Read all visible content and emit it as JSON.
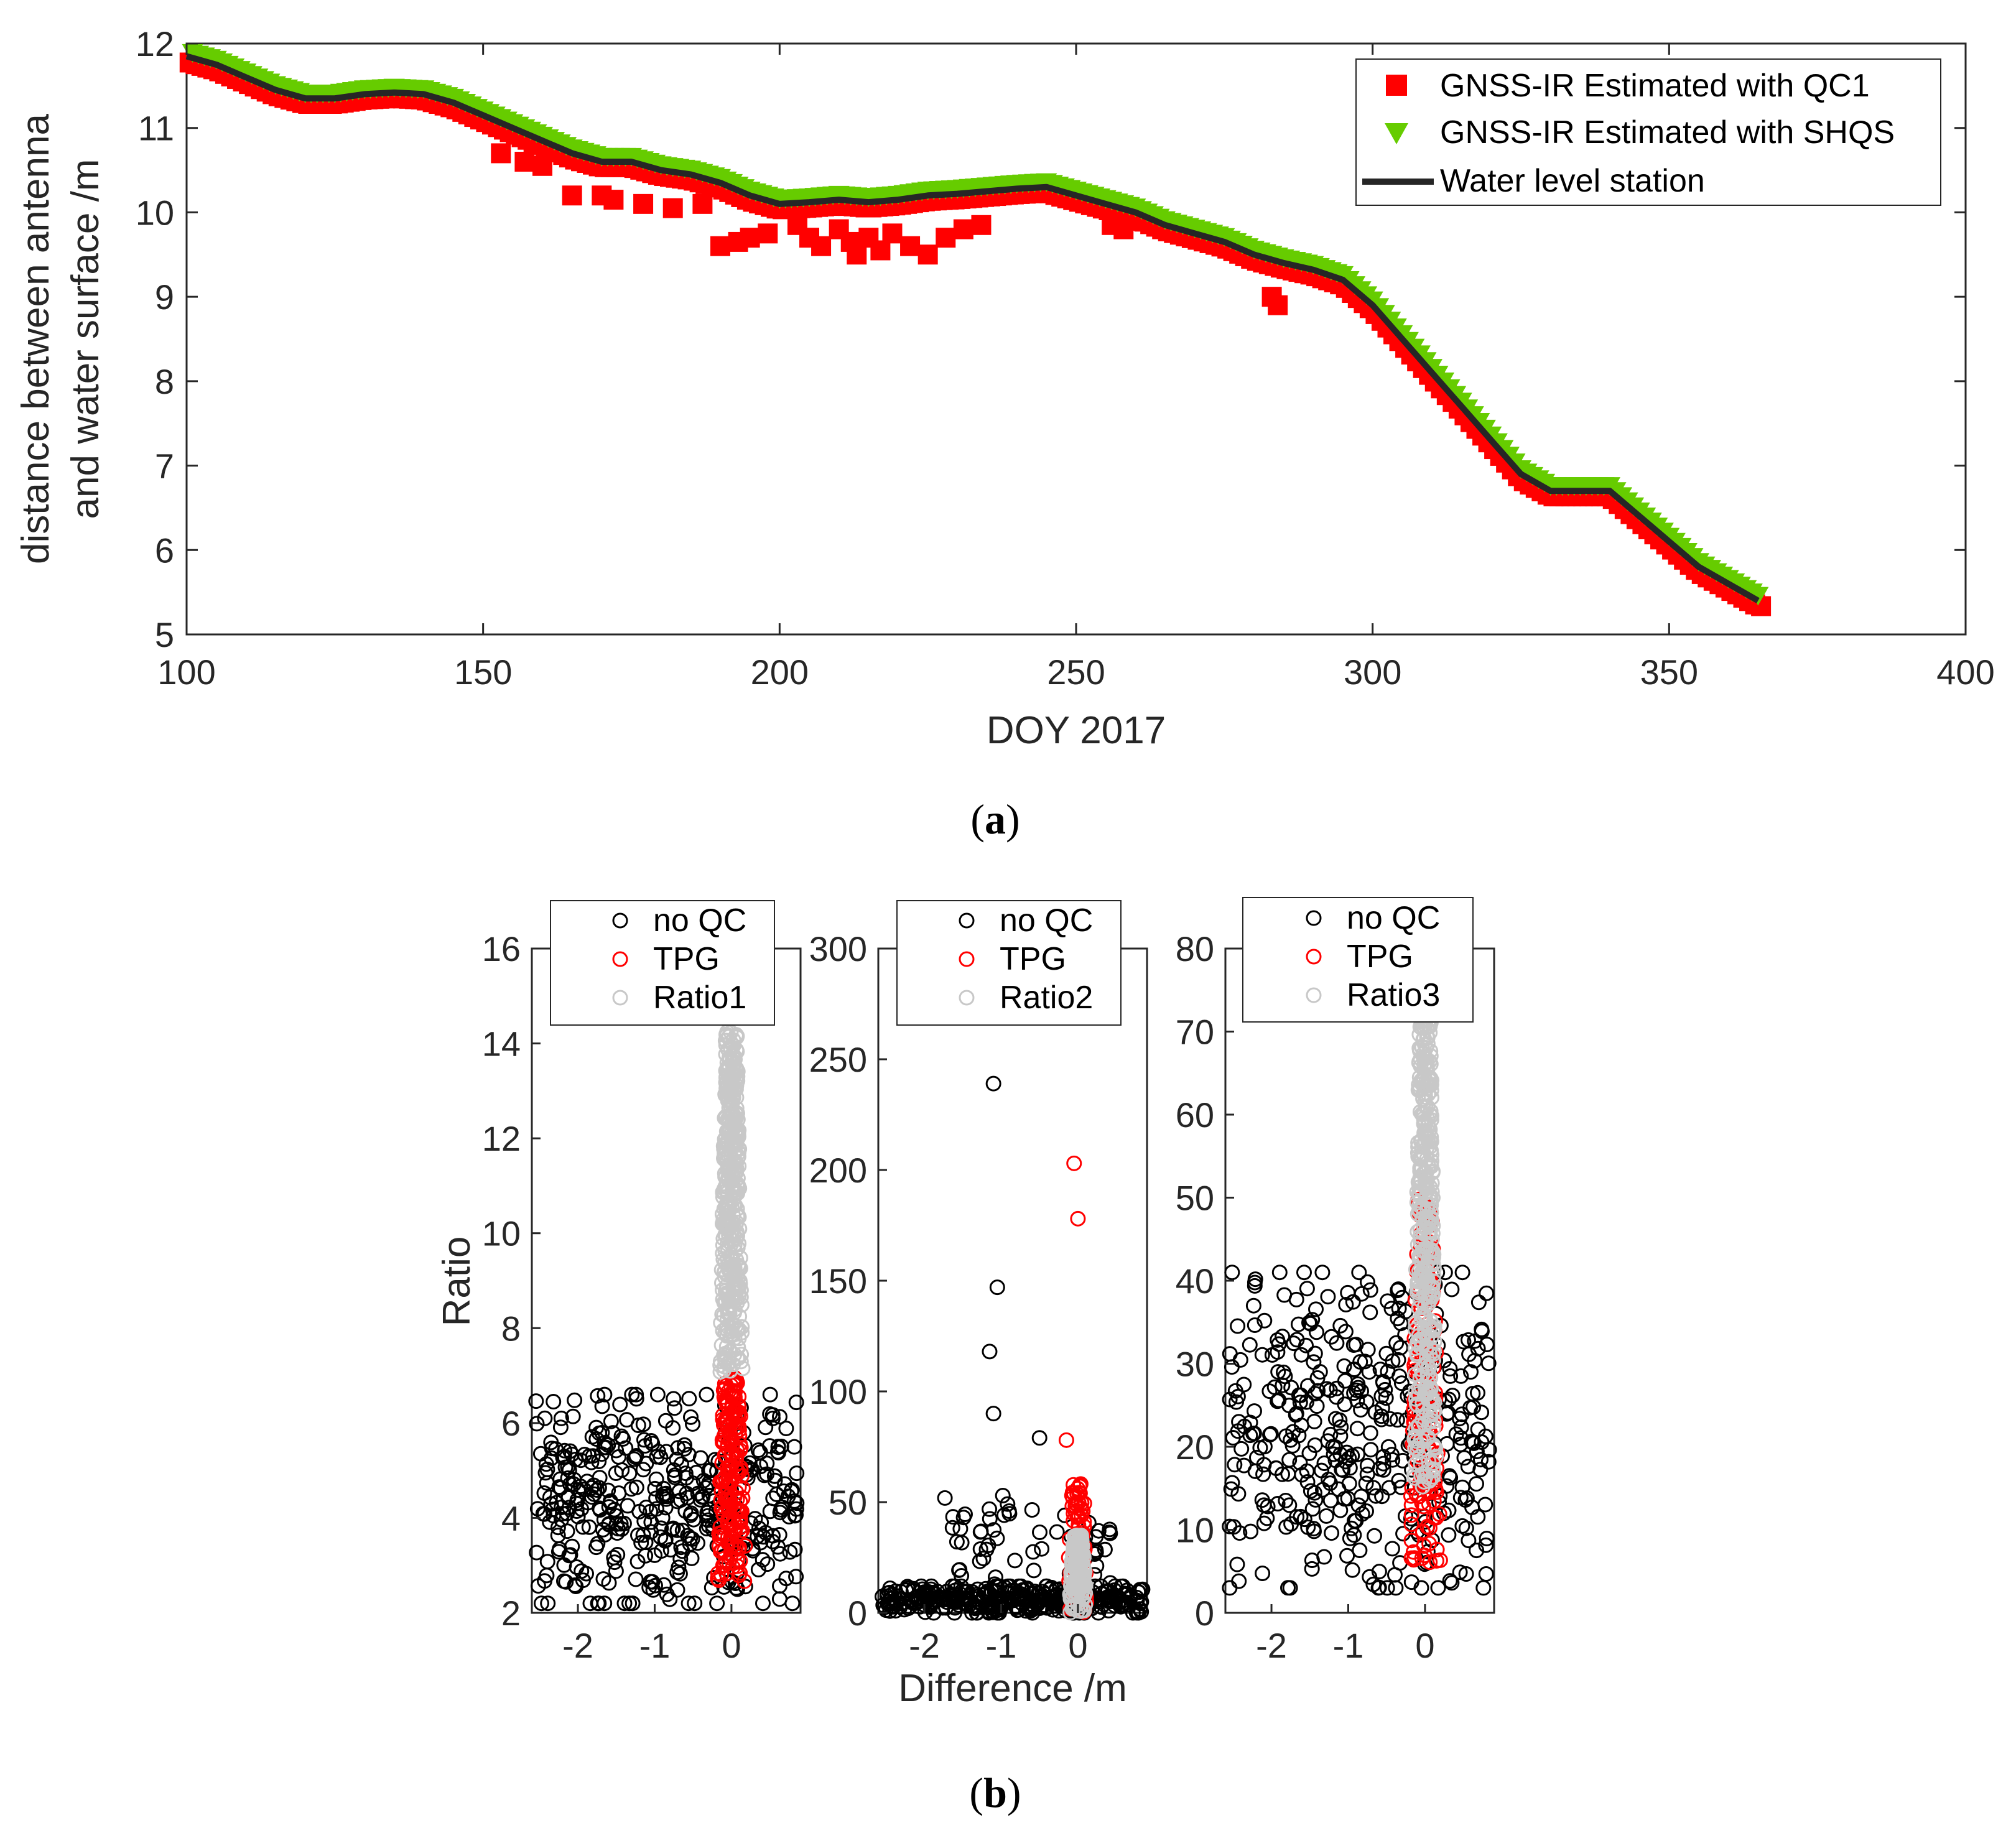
{
  "colors": {
    "qc1": "#ff0000",
    "shqs": "#66cc00",
    "station": "#262626",
    "noqc": "#000000",
    "tpg": "#ff0000",
    "ratio": "#c8c8c8",
    "axis": "#262626"
  },
  "captions": {
    "a": "(a)",
    "b": "(b)"
  },
  "chart_data": [
    {
      "id": "a",
      "type": "line",
      "xlabel": "DOY 2017",
      "ylabel_line1": "distance between antenna",
      "ylabel_line2": "and water surface /m",
      "xlim": [
        100,
        400
      ],
      "ylim": [
        5,
        12
      ],
      "xticks": [
        100,
        150,
        200,
        250,
        300,
        350,
        400
      ],
      "yticks": [
        5,
        6,
        7,
        8,
        9,
        10,
        11,
        12
      ],
      "legend_position": "top-right",
      "series": [
        {
          "name": "GNSS-IR Estimated with QC1",
          "marker": "square",
          "color": "#ff0000"
        },
        {
          "name": "GNSS-IR Estimated with SHQS",
          "marker": "triangle-down",
          "color": "#66cc00"
        },
        {
          "name": "Water level station",
          "marker": "line",
          "color": "#262626"
        }
      ],
      "station_curve": {
        "x": [
          100,
          105,
          110,
          115,
          120,
          125,
          130,
          135,
          140,
          145,
          150,
          155,
          160,
          165,
          170,
          175,
          180,
          185,
          190,
          195,
          200,
          205,
          210,
          215,
          220,
          225,
          230,
          235,
          240,
          245,
          250,
          255,
          260,
          265,
          270,
          275,
          280,
          285,
          290,
          295,
          300,
          305,
          310,
          315,
          320,
          325,
          330,
          335,
          340,
          345,
          350,
          355,
          360,
          365
        ],
        "y": [
          11.85,
          11.75,
          11.6,
          11.45,
          11.35,
          11.35,
          11.4,
          11.42,
          11.4,
          11.3,
          11.15,
          11.0,
          10.85,
          10.7,
          10.6,
          10.6,
          10.5,
          10.45,
          10.35,
          10.2,
          10.1,
          10.12,
          10.15,
          10.12,
          10.15,
          10.2,
          10.22,
          10.25,
          10.28,
          10.3,
          10.2,
          10.1,
          10.0,
          9.85,
          9.75,
          9.65,
          9.5,
          9.4,
          9.32,
          9.2,
          8.9,
          8.5,
          8.1,
          7.7,
          7.3,
          6.9,
          6.7,
          6.7,
          6.7,
          6.4,
          6.1,
          5.8,
          5.6,
          5.4
        ]
      },
      "qc1_outliers": {
        "x": [
          153,
          157,
          160,
          165,
          170,
          172,
          177,
          182,
          187,
          190,
          193,
          195,
          198,
          203,
          205,
          207,
          210,
          212,
          213,
          215,
          217,
          219,
          222,
          225,
          228,
          231,
          234,
          256,
          258,
          260,
          283,
          284
        ],
        "y": [
          10.7,
          10.6,
          10.55,
          10.2,
          10.2,
          10.15,
          10.1,
          10.05,
          10.1,
          9.6,
          9.65,
          9.7,
          9.75,
          9.85,
          9.7,
          9.6,
          9.8,
          9.65,
          9.5,
          9.7,
          9.55,
          9.75,
          9.6,
          9.5,
          9.7,
          9.8,
          9.85,
          9.85,
          9.8,
          9.9,
          9.0,
          8.9
        ]
      }
    },
    {
      "id": "b1",
      "type": "scatter",
      "xlabel": "",
      "ylabel": "Ratio",
      "xlim": [
        -2.6,
        0.9
      ],
      "ylim": [
        2,
        16
      ],
      "xticks": [
        -2,
        -1,
        0
      ],
      "yticks": [
        2,
        4,
        6,
        8,
        10,
        12,
        14,
        16
      ],
      "legend_position": "top",
      "series": [
        {
          "name": "no QC",
          "color": "#000000"
        },
        {
          "name": "TPG",
          "color": "#ff0000"
        },
        {
          "name": "Ratio1",
          "color": "#c8c8c8"
        }
      ],
      "clusters": [
        {
          "series": "no QC",
          "n": 420,
          "xmin": -2.55,
          "xmax": 0.85,
          "ymin": 2.2,
          "ymax": 6.6,
          "shape": "wide"
        },
        {
          "series": "TPG",
          "n": 190,
          "xmin": -0.2,
          "xmax": 0.2,
          "ymin": 2.6,
          "ymax": 7.0,
          "shape": "column"
        },
        {
          "series": "Ratio1",
          "n": 420,
          "xmin": -0.15,
          "xmax": 0.15,
          "ymin": 7.0,
          "ymax": 14.3,
          "shape": "column"
        }
      ]
    },
    {
      "id": "b2",
      "type": "scatter",
      "xlabel": "Difference /m",
      "ylabel": "",
      "xlim": [
        -2.6,
        0.9
      ],
      "ylim": [
        0,
        300
      ],
      "xticks": [
        -2,
        -1,
        0
      ],
      "yticks": [
        0,
        50,
        100,
        150,
        200,
        250,
        300
      ],
      "legend_position": "top",
      "series": [
        {
          "name": "no QC",
          "color": "#000000"
        },
        {
          "name": "TPG",
          "color": "#ff0000"
        },
        {
          "name": "Ratio2",
          "color": "#c8c8c8"
        }
      ],
      "clusters": [
        {
          "series": "no QC",
          "n": 380,
          "xmin": -2.55,
          "xmax": 0.85,
          "ymin": 0,
          "ymax": 12,
          "shape": "wide"
        },
        {
          "series": "no QC",
          "n": 60,
          "xmin": -1.8,
          "xmax": 0.5,
          "ymin": 10,
          "ymax": 55,
          "shape": "wide"
        },
        {
          "series": "TPG",
          "n": 60,
          "xmin": -0.15,
          "xmax": 0.15,
          "ymin": 0,
          "ymax": 60,
          "shape": "column"
        },
        {
          "series": "Ratio2",
          "n": 140,
          "xmin": -0.12,
          "xmax": 0.12,
          "ymin": 0,
          "ymax": 35,
          "shape": "column"
        }
      ],
      "extra_points": [
        {
          "series": "no QC",
          "x": -1.1,
          "y": 239
        },
        {
          "series": "no QC",
          "x": -1.05,
          "y": 147
        },
        {
          "series": "no QC",
          "x": -1.15,
          "y": 118
        },
        {
          "series": "no QC",
          "x": -1.1,
          "y": 90
        },
        {
          "series": "no QC",
          "x": -0.5,
          "y": 79
        },
        {
          "series": "TPG",
          "x": -0.05,
          "y": 203
        },
        {
          "series": "TPG",
          "x": 0.0,
          "y": 178
        },
        {
          "series": "TPG",
          "x": -0.15,
          "y": 78
        }
      ]
    },
    {
      "id": "b3",
      "type": "scatter",
      "xlabel": "",
      "ylabel": "",
      "xlim": [
        -2.6,
        0.9
      ],
      "ylim": [
        0,
        80
      ],
      "xticks": [
        -2,
        -1,
        0
      ],
      "yticks": [
        0,
        10,
        20,
        30,
        40,
        50,
        60,
        70,
        80
      ],
      "legend_position": "top",
      "series": [
        {
          "name": "no QC",
          "color": "#000000"
        },
        {
          "name": "TPG",
          "color": "#ff0000"
        },
        {
          "name": "Ratio3",
          "color": "#c8c8c8"
        }
      ],
      "clusters": [
        {
          "series": "no QC",
          "n": 420,
          "xmin": -2.55,
          "xmax": 0.85,
          "ymin": 3,
          "ymax": 41,
          "shape": "wide"
        },
        {
          "series": "TPG",
          "n": 180,
          "xmin": -0.2,
          "xmax": 0.2,
          "ymin": 6,
          "ymax": 50,
          "shape": "column"
        },
        {
          "series": "Ratio3",
          "n": 380,
          "xmin": -0.15,
          "xmax": 0.15,
          "ymin": 15,
          "ymax": 72,
          "shape": "column"
        }
      ]
    }
  ]
}
